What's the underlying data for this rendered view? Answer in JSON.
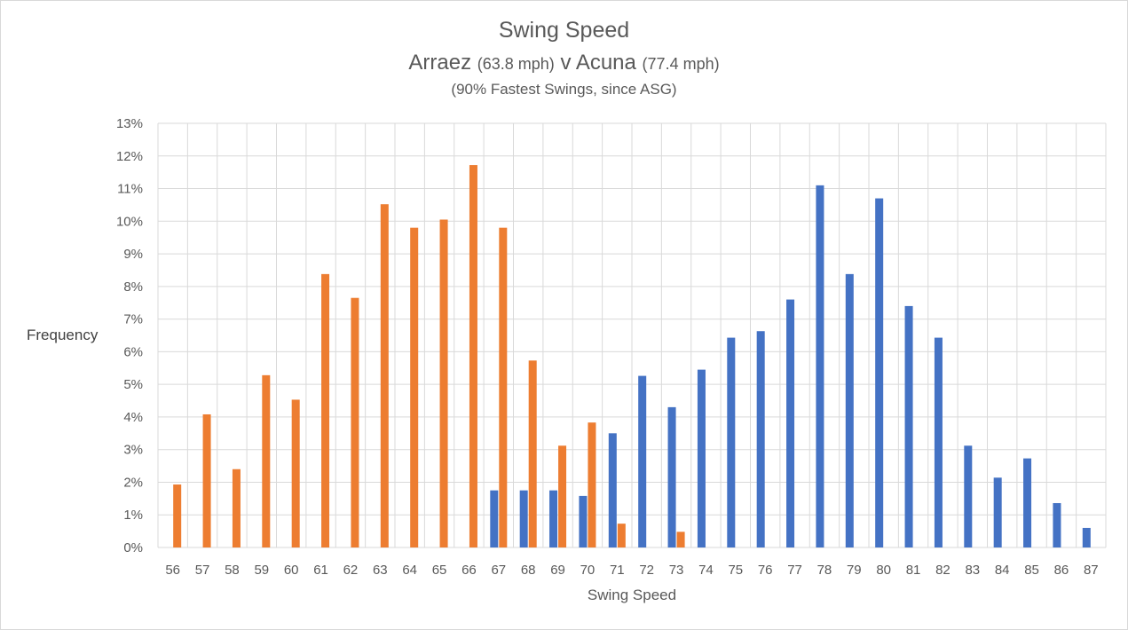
{
  "chart_data": {
    "type": "bar",
    "title": "Swing Speed",
    "subtitle": {
      "player1": "Arraez",
      "player1_speed": "(63.8 mph)",
      "separator": "v",
      "player2": "Acuna",
      "player2_speed": "(77.4 mph)"
    },
    "note": "(90% Fastest Swings, since ASG)",
    "xlabel": "Swing Speed",
    "ylabel": "Frequency",
    "ylim": [
      0,
      13
    ],
    "y_ticks": [
      "0%",
      "1%",
      "2%",
      "3%",
      "4%",
      "5%",
      "6%",
      "7%",
      "8%",
      "9%",
      "10%",
      "11%",
      "12%",
      "13%"
    ],
    "grid": true,
    "categories": [
      "56",
      "57",
      "58",
      "59",
      "60",
      "61",
      "62",
      "63",
      "64",
      "65",
      "66",
      "67",
      "68",
      "69",
      "70",
      "71",
      "72",
      "73",
      "74",
      "75",
      "76",
      "77",
      "78",
      "79",
      "80",
      "81",
      "82",
      "83",
      "84",
      "85",
      "86",
      "87"
    ],
    "series": [
      {
        "color": "#4472c4",
        "values": [
          0,
          0,
          0,
          0,
          0,
          0,
          0,
          0,
          0,
          0,
          0,
          1.75,
          1.75,
          1.75,
          1.58,
          3.5,
          5.26,
          4.3,
          5.45,
          6.43,
          6.63,
          7.6,
          11.1,
          8.38,
          10.7,
          7.4,
          6.43,
          3.12,
          2.14,
          2.73,
          1.36,
          0.6
        ]
      },
      {
        "color": "#ed7d31",
        "values": [
          1.93,
          4.08,
          2.4,
          5.28,
          4.53,
          8.38,
          7.65,
          10.52,
          9.8,
          10.05,
          11.72,
          9.8,
          5.73,
          3.12,
          3.83,
          0.73,
          0,
          0.48,
          0,
          0,
          0,
          0,
          0,
          0,
          0,
          0,
          0,
          0,
          0,
          0,
          0,
          0
        ]
      }
    ]
  }
}
